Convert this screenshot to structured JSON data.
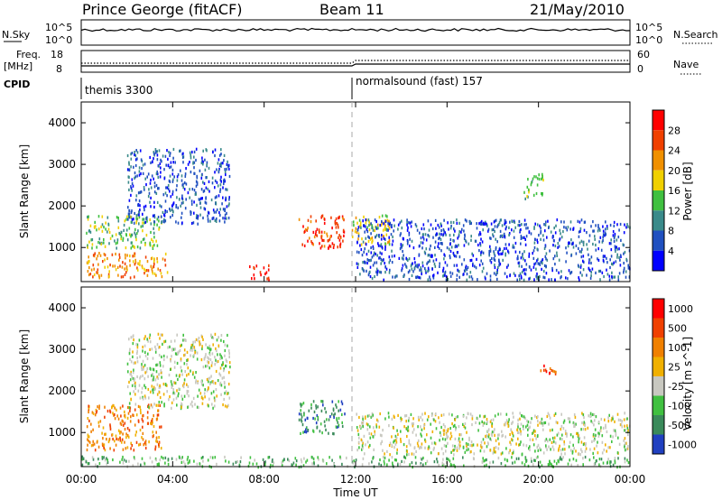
{
  "header": {
    "station": "Prince George (fitACF)",
    "beam": "Beam 11",
    "date": "21/May/2010"
  },
  "left_labels": {
    "nsky": "N.Sky",
    "nsky_ticks": [
      "10^5",
      "10^0"
    ],
    "freq": "Freq.",
    "freq_unit": "[MHz]",
    "freq_ticks": [
      "18",
      "8"
    ],
    "cpid": "CPID"
  },
  "right_labels": {
    "nsearch": "N.Search",
    "nsearch_ticks": [
      "10^5",
      "10^0"
    ],
    "nave": "Nave",
    "nave_ticks": [
      "60",
      "0"
    ]
  },
  "cpid_modes": [
    {
      "label": "themis 3300",
      "start_hour": 0
    },
    {
      "label": "normalsound (fast) 157",
      "start_hour": 12
    }
  ],
  "axes": {
    "ylabel": "Slant Range [km]",
    "xlabel": "Time UT",
    "yticks": [
      "1000",
      "2000",
      "3000",
      "4000"
    ],
    "xticks": [
      "00:00",
      "04:00",
      "08:00",
      "12:00",
      "16:00",
      "20:00",
      "00:00"
    ]
  },
  "colors": {
    "scatter_blue": "#2040c0",
    "ground_grey": "#c8c8c0"
  },
  "chart_data": [
    {
      "type": "heatmap",
      "panel": "power",
      "xlim": [
        0,
        24
      ],
      "ylim": [
        180,
        4500
      ],
      "colorbar": {
        "label": "Power [dB]",
        "ticks": [
          "4",
          "8",
          "12",
          "16",
          "20",
          "24",
          "28"
        ],
        "colors": [
          "#0000ff",
          "#2050c0",
          "#3a8a8a",
          "#40c040",
          "#f0d000",
          "#f09000",
          "#f04000",
          "#ff0000"
        ]
      },
      "regions": [
        {
          "t0": 0.2,
          "t1": 3.8,
          "r0": 300,
          "r1": 900,
          "level": 5
        },
        {
          "t0": 0.2,
          "t1": 3.5,
          "r0": 1000,
          "r1": 1800,
          "level": 3
        },
        {
          "t0": 2.0,
          "t1": 6.5,
          "r0": 1600,
          "r1": 3400,
          "level": 1
        },
        {
          "t0": 7.3,
          "t1": 8.2,
          "r0": 250,
          "r1": 600,
          "level": 7
        },
        {
          "t0": 9.5,
          "t1": 11.5,
          "r0": 1000,
          "r1": 1800,
          "level": 6
        },
        {
          "t0": 11.8,
          "t1": 13.5,
          "r0": 1100,
          "r1": 1800,
          "level": 4
        },
        {
          "t0": 12.0,
          "t1": 24.0,
          "r0": 250,
          "r1": 1700,
          "level": 1
        },
        {
          "t0": 19.3,
          "t1": 20.2,
          "r0": 2200,
          "r1": 2800,
          "level": 3
        }
      ]
    },
    {
      "type": "heatmap",
      "panel": "velocity",
      "xlim": [
        0,
        24
      ],
      "ylim": [
        180,
        4500
      ],
      "colorbar": {
        "label": "Velocity [m s^-1]",
        "ticks": [
          "1000",
          "500",
          "100",
          "25",
          "-25",
          "-100",
          "-500",
          "-1000"
        ],
        "colors": [
          "#2040c0",
          "#3a8a5a",
          "#40c040",
          "#c8c8c0",
          "#f0b000",
          "#f08000",
          "#f04000",
          "#ff0000"
        ]
      },
      "regions": [
        {
          "t0": 0.2,
          "t1": 3.5,
          "r0": 600,
          "r1": 1700,
          "level": 5
        },
        {
          "t0": 2.0,
          "t1": 6.5,
          "r0": 1600,
          "r1": 3400,
          "level": 3
        },
        {
          "t0": 9.5,
          "t1": 11.5,
          "r0": 1000,
          "r1": 1800,
          "level": 1
        },
        {
          "t0": 12.0,
          "t1": 24.0,
          "r0": 500,
          "r1": 1500,
          "level": 3
        },
        {
          "t0": 0.0,
          "t1": 24.0,
          "r0": 200,
          "r1": 450,
          "level": 2
        },
        {
          "t0": 20.0,
          "t1": 20.8,
          "r0": 2400,
          "r1": 2700,
          "level": 6
        }
      ]
    }
  ]
}
